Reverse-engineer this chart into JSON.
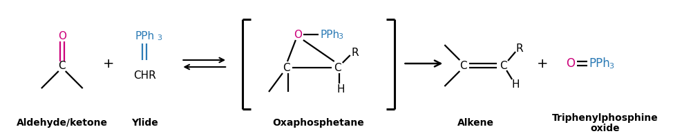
{
  "bg_color": "#ffffff",
  "black": "#000000",
  "magenta": "#cc007a",
  "teal": "#2b7ab5",
  "fig_width": 9.74,
  "fig_height": 1.97,
  "aldehyde_label": "Aldehyde/ketone",
  "ylide_label": "Ylide",
  "oxaphosphetane_label": "Oxaphosphetane",
  "alkene_label": "Alkene",
  "triphenyl_line1": "Triphenylphosphine",
  "triphenyl_line2": "oxide"
}
